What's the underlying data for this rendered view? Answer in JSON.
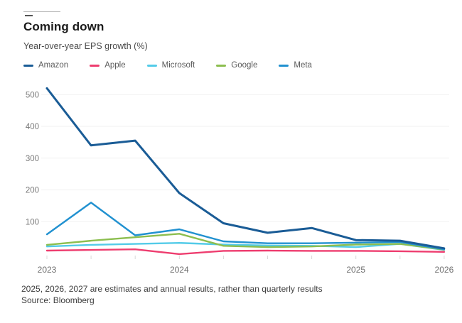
{
  "header": {
    "title": "Coming down",
    "subtitle": "Year-over-year EPS growth (%)"
  },
  "chart_data": {
    "type": "line",
    "title": "Coming down",
    "subtitle": "Year-over-year EPS growth (%)",
    "xlabel": "",
    "ylabel": "Year-over-year EPS growth (%)",
    "num_points": 10,
    "x_tick_labels": [
      {
        "label": "2023",
        "index": 0
      },
      {
        "label": "2024",
        "index": 3
      },
      {
        "label": "2025",
        "index": 7
      },
      {
        "label": "2026",
        "index": 9
      }
    ],
    "y_ticks": [
      100,
      200,
      300,
      400,
      500
    ],
    "ylim": [
      -15,
      540
    ],
    "grid": "horizontal-faint",
    "legend_position": "top",
    "series": [
      {
        "name": "Amazon",
        "color": "#1a5c96",
        "values": [
          520,
          340,
          355,
          190,
          95,
          65,
          80,
          42,
          40,
          16
        ]
      },
      {
        "name": "Apple",
        "color": "#ee3d6f",
        "values": [
          9,
          11,
          13,
          -2,
          8,
          9,
          8,
          8,
          7,
          5
        ]
      },
      {
        "name": "Microsoft",
        "color": "#53cbe8",
        "values": [
          22,
          27,
          30,
          33,
          28,
          25,
          24,
          20,
          30,
          11
        ]
      },
      {
        "name": "Google",
        "color": "#8cbe4f",
        "values": [
          27,
          40,
          51,
          62,
          24,
          20,
          22,
          28,
          30,
          12
        ]
      },
      {
        "name": "Meta",
        "color": "#2191d0",
        "values": [
          60,
          160,
          57,
          76,
          38,
          32,
          32,
          34,
          36,
          13
        ]
      }
    ]
  },
  "footer": {
    "note": "2025, 2026, 2027 are estimates and annual results, rather than quarterly results",
    "source": "Source: Bloomberg"
  }
}
